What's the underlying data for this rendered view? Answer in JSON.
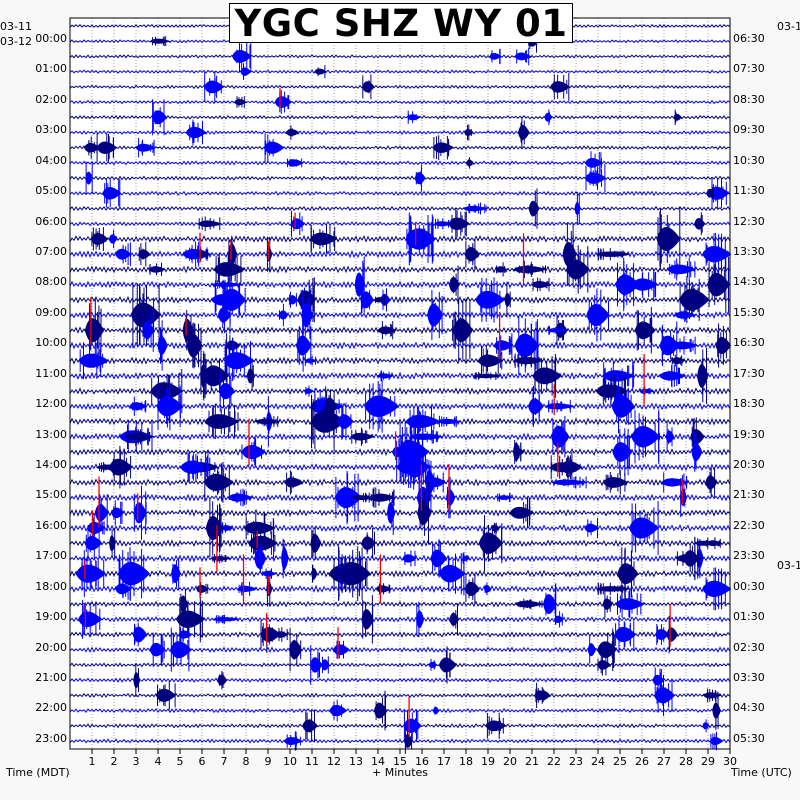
{
  "chart_data": {
    "type": "heatmap",
    "title": "YGC SHZ WY 01",
    "plot_kind": "helicorder seismogram",
    "xlabel": "+ Minutes",
    "ylabel_left": "Time (MDT)",
    "ylabel_right": "Time (UTC)",
    "xlim": [
      0,
      30
    ],
    "x_ticks": [
      "1",
      "2",
      "3",
      "4",
      "5",
      "6",
      "7",
      "8",
      "9",
      "10",
      "11",
      "12",
      "13",
      "14",
      "15",
      "16",
      "17",
      "18",
      "19",
      "20",
      "21",
      "22",
      "23",
      "24",
      "25",
      "26",
      "27",
      "28",
      "29",
      "30"
    ],
    "rows_per_hour": 2,
    "row_minutes": 30,
    "row_count": 48,
    "left_date_labels": [
      "03-11",
      "03-12"
    ],
    "right_date_labels": [
      "03-1",
      "03-1"
    ],
    "left_hour_labels": [
      "00:00",
      "01:00",
      "02:00",
      "03:00",
      "04:00",
      "05:00",
      "06:00",
      "07:00",
      "08:00",
      "09:00",
      "10:00",
      "11:00",
      "12:00",
      "13:00",
      "14:00",
      "15:00",
      "16:00",
      "17:00",
      "18:00",
      "19:00",
      "20:00",
      "21:00",
      "22:00",
      "23:00"
    ],
    "right_hour_labels": [
      "06:30",
      "07:30",
      "08:30",
      "09:30",
      "10:30",
      "11:30",
      "12:30",
      "13:30",
      "14:30",
      "15:30",
      "16:30",
      "17:30",
      "18:30",
      "19:30",
      "20:30",
      "21:30",
      "22:30",
      "23:30",
      "00:30",
      "01:30",
      "02:30",
      "03:30",
      "04:30",
      "05:30"
    ],
    "trace_colors": [
      "#000080",
      "#0000ff"
    ],
    "clip_color": "#ff0000",
    "grid": true
  }
}
